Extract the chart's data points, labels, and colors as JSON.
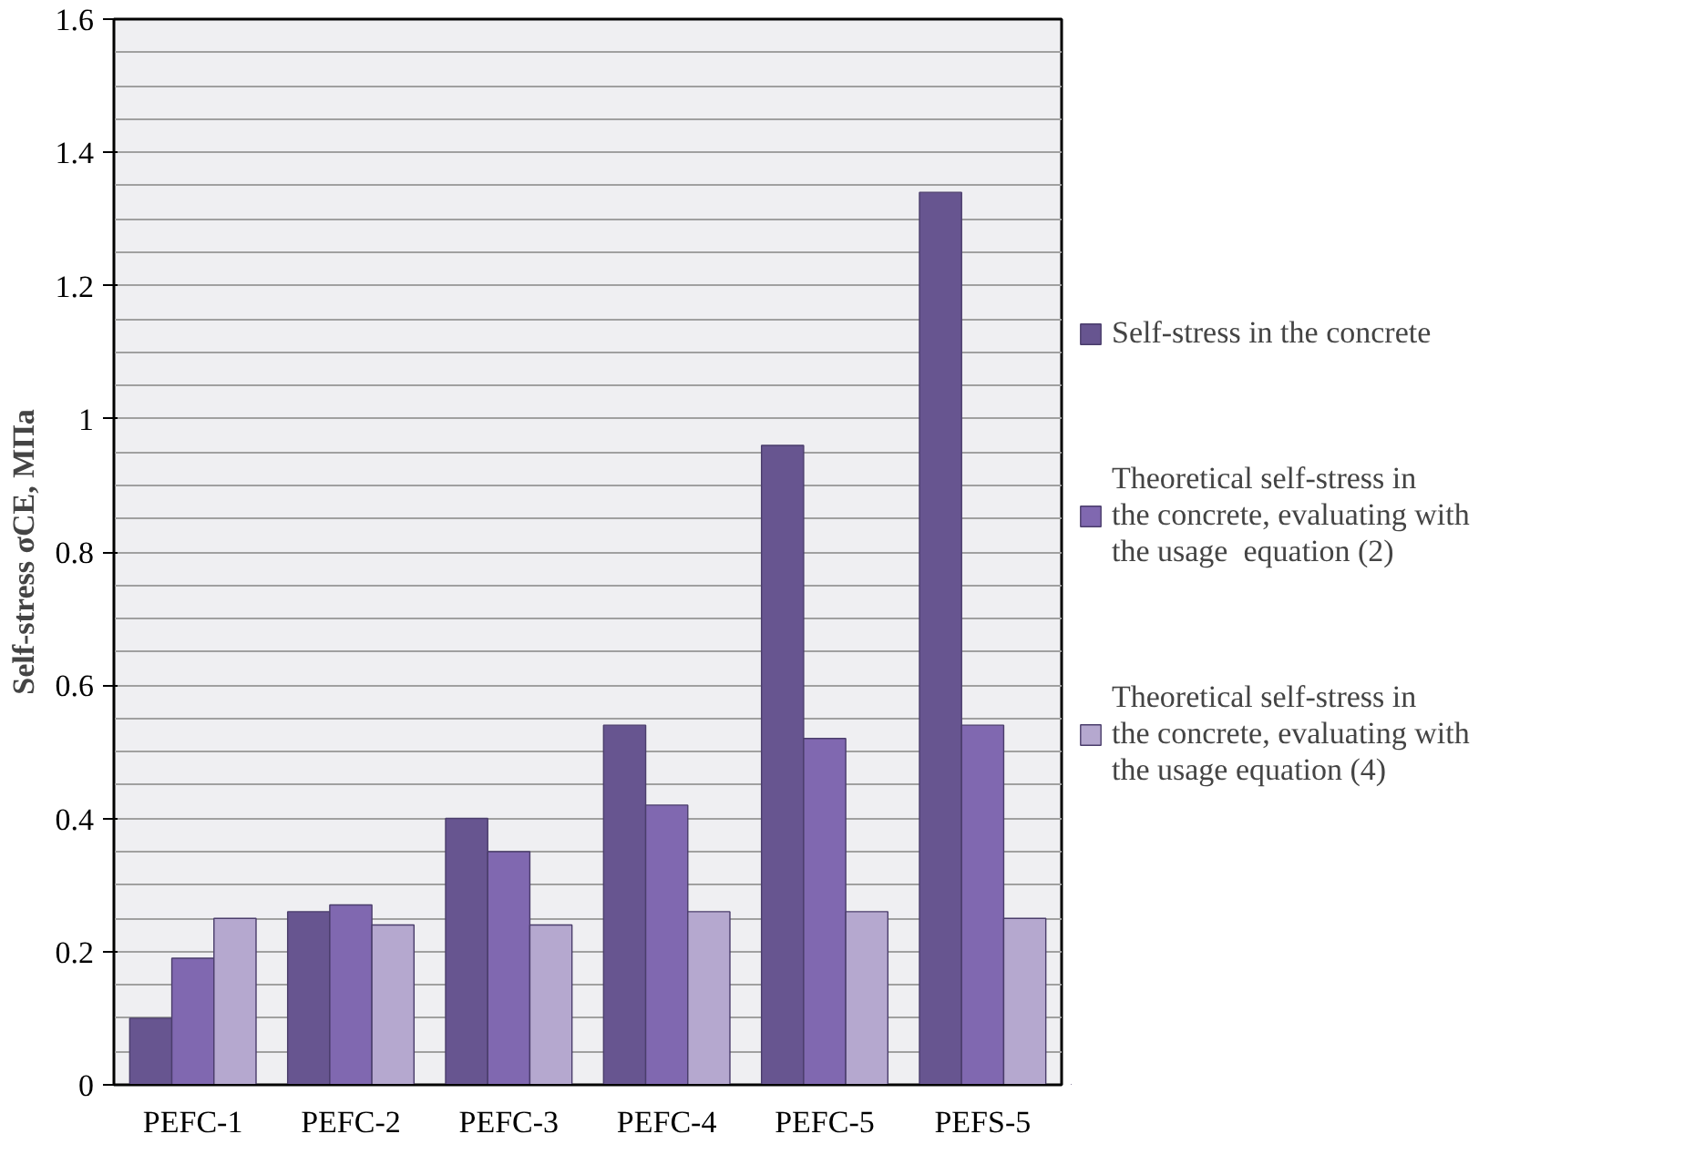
{
  "chart_data": {
    "type": "bar",
    "ylabel": "Self-stress σCE, МПа",
    "categories": [
      "PEFC-1",
      "PEFC-2",
      "PEFC-3",
      "PEFC-4",
      "PEFC-5",
      "PEFS-5"
    ],
    "series": [
      {
        "name": "Self-stress in the concrete",
        "color": "#675590",
        "values": [
          0.1,
          0.26,
          0.4,
          0.54,
          0.96,
          1.34
        ]
      },
      {
        "name": "Theoretical self-stress in the concrete, evaluating with the usage  equation (2)",
        "color": "#8068b0",
        "values": [
          0.19,
          0.27,
          0.35,
          0.42,
          0.52,
          0.54
        ]
      },
      {
        "name": "Theoretical self-stress in the concrete, evaluating with the usage equation (4)",
        "color": "#b5a8cf",
        "values": [
          0.25,
          0.24,
          0.24,
          0.26,
          0.26,
          0.25
        ]
      }
    ],
    "ylim": [
      0,
      1.6
    ],
    "yticks": [
      0,
      0.2,
      0.4,
      0.6,
      0.8,
      1,
      1.2,
      1.4,
      1.6
    ],
    "grid": "y",
    "legend": "right"
  }
}
